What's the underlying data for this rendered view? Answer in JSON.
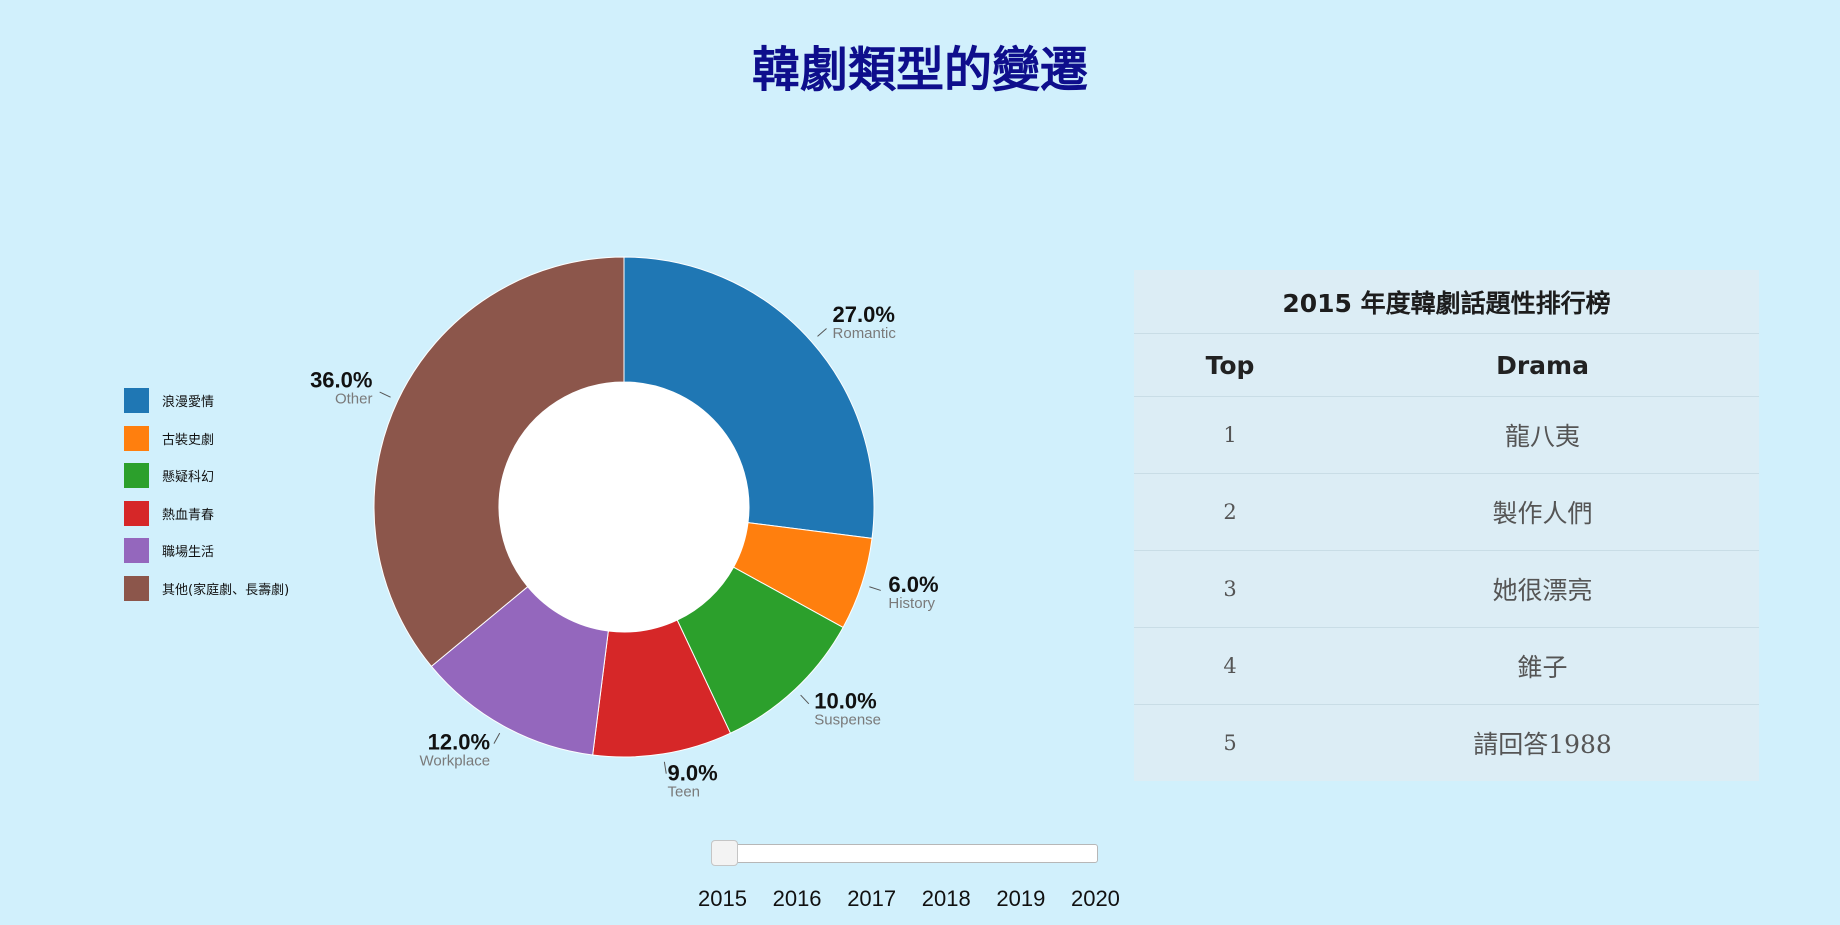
{
  "title": "韓劇類型的變遷",
  "legend": [
    {
      "label": "浪漫愛情",
      "color": "#1f77b4"
    },
    {
      "label": "古裝史劇",
      "color": "#ff7f0e"
    },
    {
      "label": "懸疑科幻",
      "color": "#2ca02c"
    },
    {
      "label": "熱血青春",
      "color": "#d62728"
    },
    {
      "label": "職場生活",
      "color": "#9467bd"
    },
    {
      "label": "其他(家庭劇、長壽劇)",
      "color": "#8c564b"
    }
  ],
  "chart_data": {
    "type": "pie",
    "style": "donut",
    "categories": [
      "Romantic",
      "History",
      "Suspense",
      "Teen",
      "Workplace",
      "Other"
    ],
    "values": [
      27.0,
      6.0,
      10.0,
      9.0,
      12.0,
      36.0
    ],
    "value_labels": [
      "27.0%",
      "6.0%",
      "10.0%",
      "9.0%",
      "12.0%",
      "36.0%"
    ],
    "colors": [
      "#1f77b4",
      "#ff7f0e",
      "#2ca02c",
      "#d62728",
      "#9467bd",
      "#8c564b"
    ]
  },
  "ranking": {
    "title": "2015 年度韓劇話題性排行榜",
    "headers": [
      "Top",
      "Drama"
    ],
    "rows": [
      {
        "rank": "1",
        "drama": "龍八夷"
      },
      {
        "rank": "2",
        "drama": "製作人們"
      },
      {
        "rank": "3",
        "drama": "她很漂亮"
      },
      {
        "rank": "4",
        "drama": "錐子"
      },
      {
        "rank": "5",
        "drama": "請回答1988"
      }
    ]
  },
  "year_slider": {
    "value": "2015",
    "years": [
      "2015",
      "2016",
      "2017",
      "2018",
      "2019",
      "2020"
    ]
  }
}
